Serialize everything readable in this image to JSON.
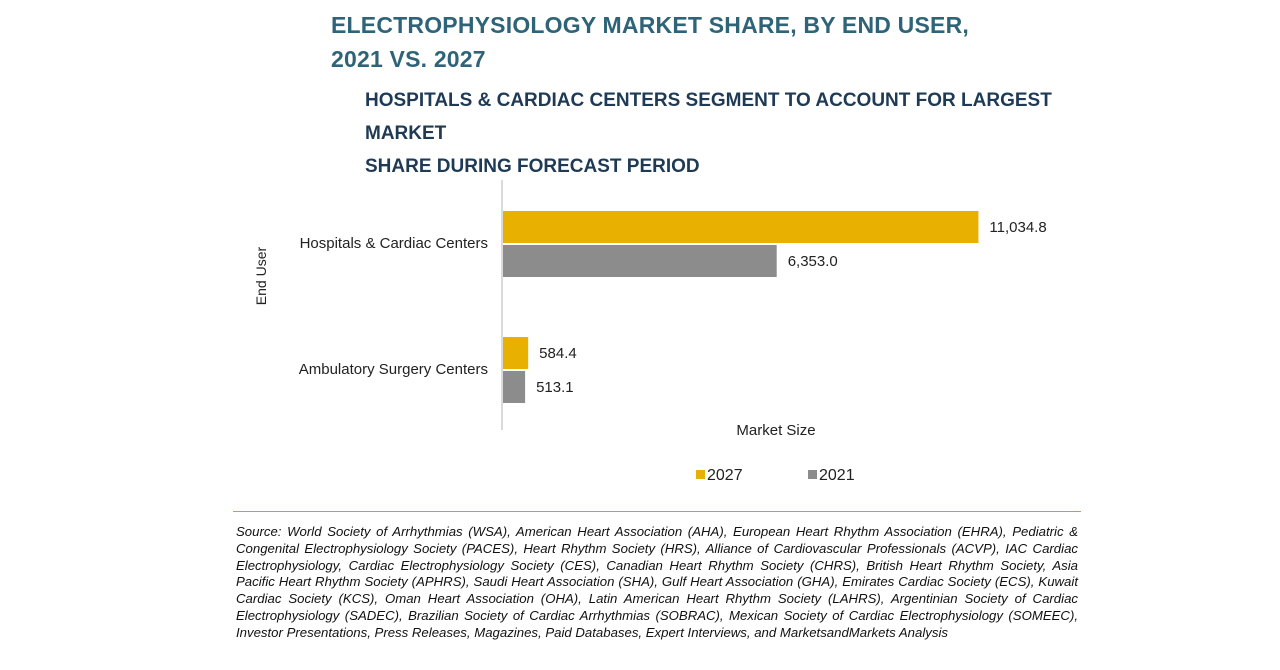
{
  "chart_data": {
    "type": "bar",
    "orientation": "horizontal",
    "title": "ELECTROPHYSIOLOGY MARKET SHARE, BY END USER, 2021 VS. 2027",
    "title_lines": [
      "ELECTROPHYSIOLOGY MARKET SHARE, BY END USER,",
      "2021 VS. 2027"
    ],
    "subtitle_lines": [
      "HOSPITALS & CARDIAC CENTERS SEGMENT TO ACCOUNT FOR LARGEST MARKET",
      "SHARE DURING FORECAST PERIOD"
    ],
    "categories": [
      "Hospitals & Cardiac Centers",
      "Ambulatory Surgery Centers"
    ],
    "series": [
      {
        "name": "2027",
        "color": "#e8b000",
        "values": [
          11034.8,
          584.4
        ],
        "labels": [
          "11,034.8",
          "584.4"
        ]
      },
      {
        "name": "2021",
        "color": "#8c8c8c",
        "values": [
          6353.0,
          513.1
        ],
        "labels": [
          "6,353.0",
          "513.1"
        ]
      }
    ],
    "xlabel": "Market Size",
    "ylabel": "End User",
    "xlim": [
      0,
      12000
    ],
    "legend_position": "bottom"
  },
  "source_text": "Source: World Society of Arrhythmias (WSA), American Heart Association (AHA), European Heart Rhythm Association (EHRA), Pediatric & Congenital Electrophysiology Society (PACES), Heart Rhythm Society (HRS), Alliance of Cardiovascular Professionals (ACVP), IAC Cardiac Electrophysiology, Cardiac Electrophysiology Society (CES), Canadian Heart Rhythm Society (CHRS), British Heart Rhythm Society, Asia Pacific Heart Rhythm Society (APHRS), Saudi Heart Association (SHA), Gulf Heart Association (GHA), Emirates Cardiac Society (ECS), Kuwait Cardiac Society (KCS), Oman Heart Association (OHA), Latin American Heart Rhythm Society (LAHRS), Argentinian Society of Cardiac Electrophysiology (SADEC), Brazilian Society of Cardiac Arrhythmias (SOBRAC), Mexican Society of Cardiac Electrophysiology (SOMEEC), Investor Presentations, Press Releases, Magazines, Paid Databases, Expert Interviews, and MarketsandMarkets Analysis"
}
